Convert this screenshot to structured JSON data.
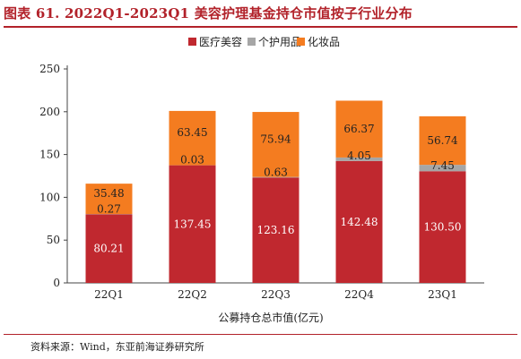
{
  "figure": {
    "title": "图表 61. 2022Q1-2023Q1 美容护理基金持仓市值按子行业分布",
    "source": "资料来源：Wind，东亚前海证券研究所"
  },
  "chart_data": {
    "type": "bar",
    "stacked": true,
    "categories": [
      "22Q1",
      "22Q2",
      "22Q3",
      "22Q4",
      "23Q1"
    ],
    "series": [
      {
        "name": "医疗美容",
        "color": "#c0282f",
        "values": [
          80.21,
          137.45,
          123.16,
          142.48,
          130.5
        ],
        "labels": [
          "80.21",
          "137.45",
          "123.16",
          "142.48",
          "130.50"
        ]
      },
      {
        "name": "个护用品",
        "color": "#a6a6a6",
        "values": [
          0.27,
          0.03,
          0.63,
          4.05,
          7.45
        ],
        "labels": [
          "0.27",
          "0.03",
          "0.63",
          "4.05",
          "7.45"
        ]
      },
      {
        "name": "化妆品",
        "color": "#f47c20",
        "values": [
          35.48,
          63.45,
          75.94,
          66.37,
          56.74
        ],
        "labels": [
          "35.48",
          "63.45",
          "75.94",
          "66.37",
          "56.74"
        ]
      }
    ],
    "xlabel": "公募持仓总市值(亿元)",
    "ylabel": "",
    "ylim": [
      0,
      250
    ],
    "yticks": [
      "0",
      "50",
      "100",
      "150",
      "200",
      "250"
    ],
    "grid": false,
    "legend": "top-center"
  }
}
